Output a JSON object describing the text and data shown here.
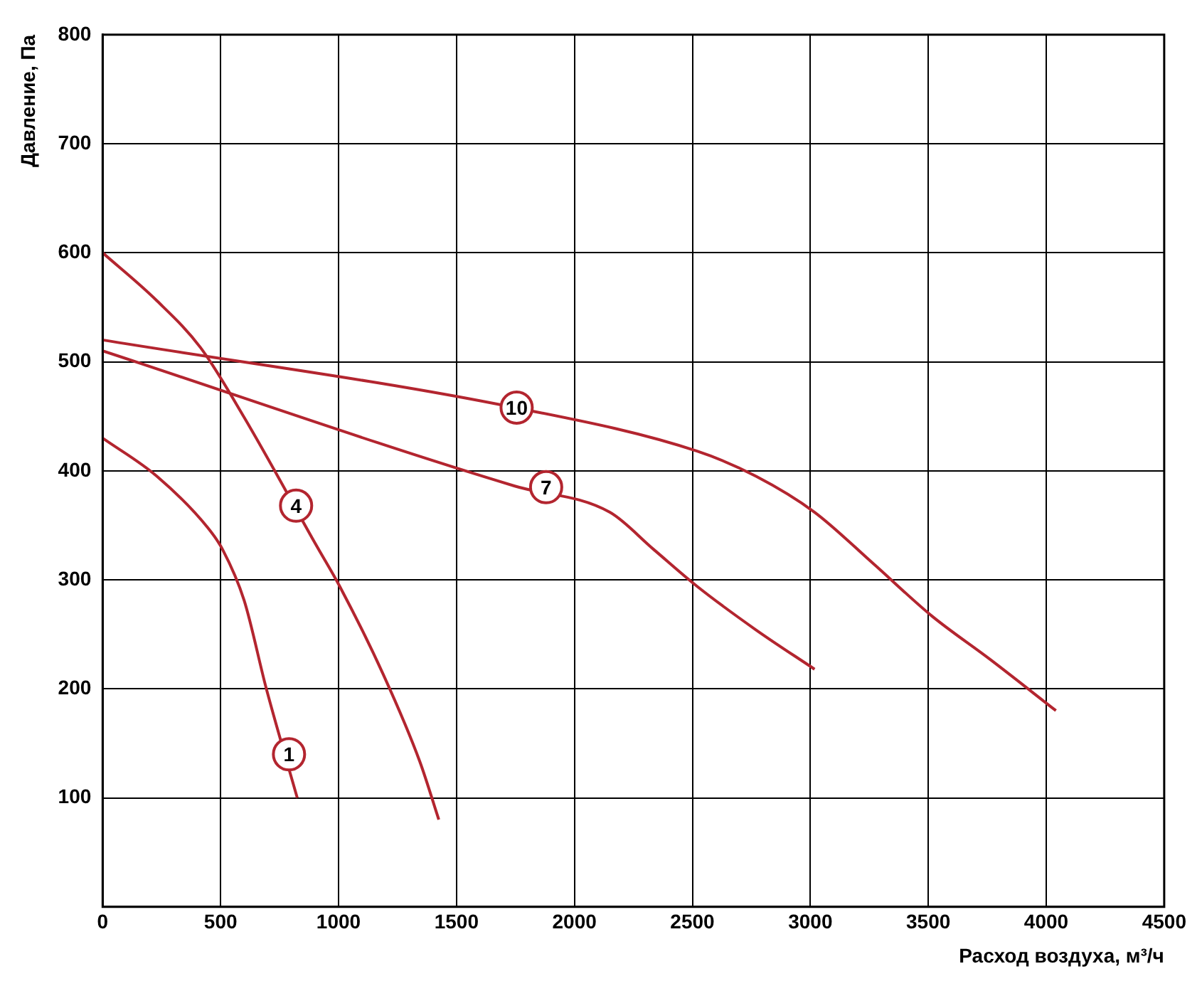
{
  "chart_data": {
    "type": "line",
    "xlabel": "Расход воздуха, м³/ч",
    "ylabel": "Давление, Па",
    "series": [
      {
        "color": "#b3252f",
        "x": [
          0,
          230,
          445,
          508,
          600,
          694,
          825
        ],
        "values": [
          430,
          395,
          348,
          328,
          281,
          200,
          100
        ]
      },
      {
        "color": "#b3252f",
        "x": [
          0,
          230,
          415,
          600,
          910,
          1005,
          1190,
          1345,
          1425
        ],
        "values": [
          600,
          556,
          513,
          449,
          330,
          294,
          213,
          133,
          80
        ]
      },
      {
        "color": "#b3252f",
        "x": [
          0,
          1747,
          2150,
          2335,
          2520,
          2770,
          3018
        ],
        "values": [
          510,
          386,
          362,
          328,
          294,
          254,
          218
        ]
      },
      {
        "color": "#b3252f",
        "x": [
          0,
          1747,
          2520,
          2770,
          3018,
          3266,
          3514,
          3762,
          4041
        ],
        "values": [
          520,
          458,
          418,
          395,
          362,
          315,
          267,
          227,
          180
        ]
      }
    ],
    "annotations": [
      {
        "text": "1",
        "x": 790,
        "y": 140
      },
      {
        "text": "4",
        "x": 820,
        "y": 368
      },
      {
        "text": "7",
        "x": 1880,
        "y": 385
      },
      {
        "text": "10",
        "x": 1755,
        "y": 458
      }
    ],
    "xlim": [
      0,
      4500
    ],
    "xticks": [
      0,
      500,
      1000,
      1500,
      2000,
      2500,
      3000,
      3500,
      4000,
      4500
    ],
    "ylim": [
      0,
      800
    ],
    "yticks": [
      {
        "value": 0,
        "label": null
      },
      100,
      200,
      300,
      400,
      500,
      600,
      700,
      800
    ],
    "grid": true,
    "legend": false,
    "marker": "none",
    "line_style": "solid"
  }
}
